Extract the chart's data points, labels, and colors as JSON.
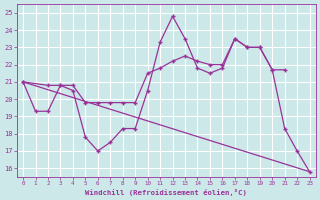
{
  "xlabel": "Windchill (Refroidissement éolien,°C)",
  "xlim": [
    -0.5,
    23.5
  ],
  "ylim": [
    15.5,
    25.5
  ],
  "yticks": [
    16,
    17,
    18,
    19,
    20,
    21,
    22,
    23,
    24,
    25
  ],
  "xticks": [
    0,
    1,
    2,
    3,
    4,
    5,
    6,
    7,
    8,
    9,
    10,
    11,
    12,
    13,
    14,
    15,
    16,
    17,
    18,
    19,
    20,
    21,
    22,
    23
  ],
  "bg_color": "#cce8e8",
  "grid_color": "#ffffff",
  "line_color": "#993399",
  "series1_x": [
    0,
    1,
    2,
    3,
    4,
    5,
    6,
    7,
    8,
    9,
    10,
    11,
    12,
    13,
    14,
    15,
    16,
    17,
    18,
    19,
    20,
    21,
    22,
    23
  ],
  "series1_y": [
    21.0,
    19.3,
    19.3,
    20.8,
    20.5,
    17.8,
    17.0,
    17.5,
    18.3,
    18.3,
    20.5,
    23.3,
    24.8,
    23.5,
    21.8,
    21.5,
    21.8,
    23.5,
    23.0,
    23.0,
    21.7,
    18.3,
    17.0,
    15.8
  ],
  "series2_x": [
    0,
    2,
    3,
    4,
    5,
    6,
    7,
    8,
    9,
    10,
    11,
    12,
    13,
    14,
    15,
    16,
    17,
    18,
    19,
    20,
    21
  ],
  "series2_y": [
    21.0,
    20.8,
    20.8,
    20.8,
    19.8,
    19.8,
    19.8,
    19.8,
    19.8,
    21.5,
    21.8,
    22.2,
    22.5,
    22.2,
    22.0,
    22.0,
    23.5,
    23.0,
    23.0,
    21.7,
    21.7
  ],
  "trend_x": [
    0,
    23
  ],
  "trend_y": [
    21.0,
    15.8
  ]
}
